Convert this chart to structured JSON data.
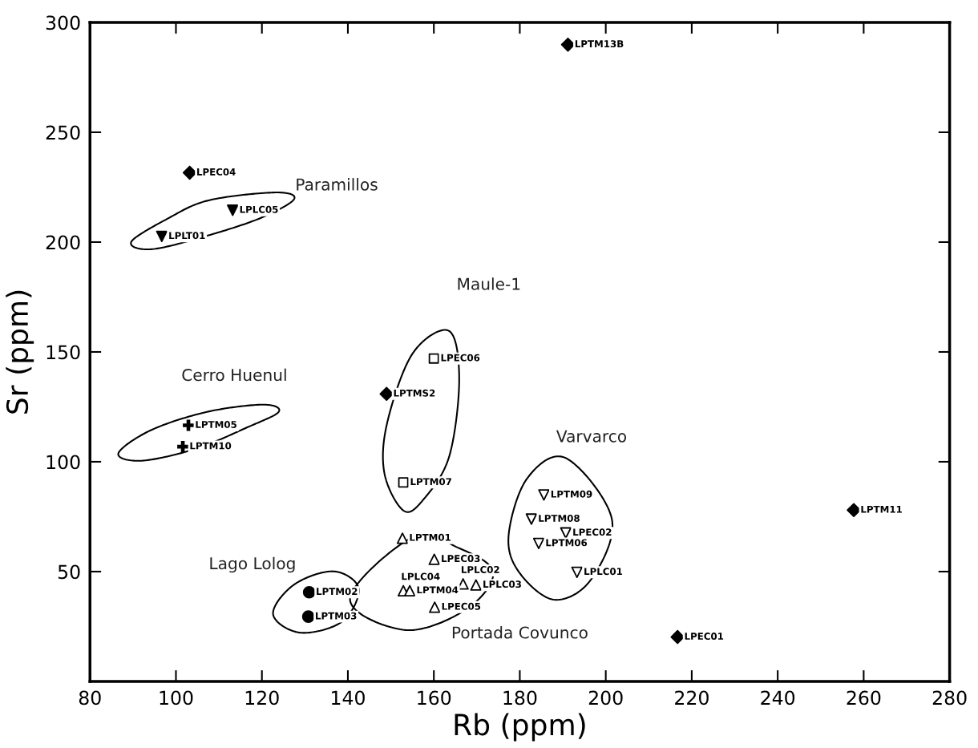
{
  "chart_data": {
    "type": "scatter",
    "xlabel": "Rb (ppm)",
    "ylabel": "Sr (ppm)",
    "xlim": [
      80,
      280
    ],
    "ylim": [
      0,
      300
    ],
    "xticks": [
      80,
      100,
      120,
      140,
      160,
      180,
      200,
      220,
      240,
      260,
      280
    ],
    "yticks": [
      50,
      100,
      150,
      200,
      250,
      300
    ],
    "grid": false,
    "legend": false,
    "series": [
      {
        "marker": "diamond",
        "color": "#000000",
        "x": [
          103.2,
          191.2,
          149.0,
          257.7,
          216.7
        ],
        "values": [
          231.6,
          289.9,
          130.9,
          78.0,
          20.2
        ],
        "value_labels": [
          "LPEC04",
          "LPTM13B",
          "LPTMS2",
          "LPTM11",
          "LPEC01"
        ]
      },
      {
        "marker": "triangle_down",
        "color": "#000000",
        "x": [
          113.2,
          96.7
        ],
        "values": [
          214.5,
          202.6
        ],
        "value_labels": [
          "LPLC05",
          "LPLT01"
        ]
      },
      {
        "marker": "cross",
        "color": "#000000",
        "x": [
          102.9,
          101.6
        ],
        "values": [
          116.6,
          106.9
        ],
        "value_labels": [
          "LPTM05",
          "LPTM10"
        ]
      },
      {
        "marker": "square",
        "color": "#000000",
        "x": [
          160.0,
          152.9
        ],
        "values": [
          147.0,
          90.6
        ],
        "value_labels": [
          "LPEC06",
          "LPTM07"
        ]
      },
      {
        "marker": "circle",
        "color": "#000000",
        "x": [
          131.0,
          130.8
        ],
        "values": [
          40.6,
          29.5
        ],
        "value_labels": [
          "LPTM02",
          "LPTM03"
        ]
      },
      {
        "marker": "triangle",
        "color": "#000000",
        "x": [
          152.7,
          160.1,
          152.9,
          154.4,
          160.2,
          166.8,
          169.8
        ],
        "values": [
          65.2,
          55.6,
          41.3,
          41.3,
          33.8,
          44.4,
          43.9
        ],
        "value_labels": [
          "LPTM01",
          "LPEC03",
          "LPLC04",
          "LPTM04",
          "LPEC05",
          "LPLC02",
          "LPLC03"
        ]
      },
      {
        "marker": "triangle_down",
        "color": "#000000",
        "x": [
          185.6,
          182.7,
          190.7,
          184.4,
          193.3
        ],
        "values": [
          84.9,
          73.9,
          67.6,
          62.8,
          49.7
        ],
        "value_labels": [
          "LPTM09",
          "LPTM08",
          "LPEC02",
          "LPTM06",
          "LPLC01"
        ]
      }
    ],
    "annotations": [
      "Paramillos",
      "Maule-1",
      "Cerro Huenul",
      "Varvarco",
      "Lago Lolog",
      "Portada Covunco"
    ]
  }
}
